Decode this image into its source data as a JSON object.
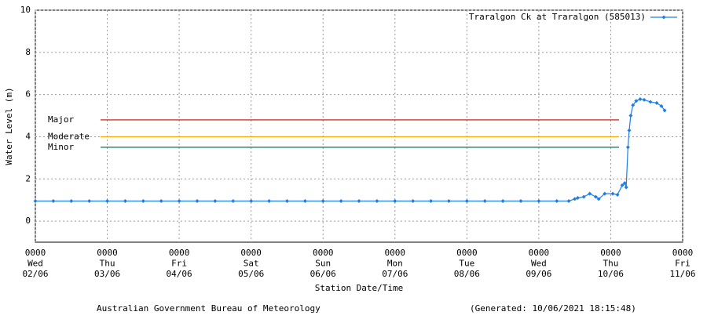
{
  "chart_data": {
    "type": "line",
    "y_label": "Water Level (m)",
    "x_label": "Station Date/Time",
    "footer_left": "Australian Government Bureau of Meteorology",
    "footer_right": "(Generated: 10/06/2021 18:15:48)",
    "ylim": [
      -1,
      10
    ],
    "yticks": [
      0,
      2,
      4,
      6,
      8,
      10
    ],
    "grid": true,
    "xlim": [
      "02/06 00:00",
      "11/06 00:00"
    ],
    "xticks": [
      {
        "value": "02/06 00:00",
        "label": [
          "0000",
          "Wed",
          "02/06"
        ]
      },
      {
        "value": "03/06 00:00",
        "label": [
          "0000",
          "Thu",
          "03/06"
        ]
      },
      {
        "value": "04/06 00:00",
        "label": [
          "0000",
          "Fri",
          "04/06"
        ]
      },
      {
        "value": "05/06 00:00",
        "label": [
          "0000",
          "Sat",
          "05/06"
        ]
      },
      {
        "value": "06/06 00:00",
        "label": [
          "0000",
          "Sun",
          "06/06"
        ]
      },
      {
        "value": "07/06 00:00",
        "label": [
          "0000",
          "Mon",
          "07/06"
        ]
      },
      {
        "value": "08/06 00:00",
        "label": [
          "0000",
          "Tue",
          "08/06"
        ]
      },
      {
        "value": "09/06 00:00",
        "label": [
          "0000",
          "Wed",
          "09/06"
        ]
      },
      {
        "value": "10/06 00:00",
        "label": [
          "0000",
          "Thu",
          "10/06"
        ]
      },
      {
        "value": "11/06 00:00",
        "label": [
          "0000",
          "Fri",
          "11/06"
        ]
      }
    ],
    "thresholds": [
      {
        "name": "Major",
        "value": 4.8,
        "color": "#cc0000"
      },
      {
        "name": "Moderate",
        "value": 4.0,
        "color": "#ffa500"
      },
      {
        "name": "Minor",
        "value": 3.5,
        "color": "#007755"
      }
    ],
    "legend": "top-right",
    "series": [
      {
        "name": "Traralgon Ck at Traralgon (585013)",
        "color": "#1e7ee6",
        "x": [
          "02/06 00:00",
          "02/06 06:00",
          "02/06 12:00",
          "02/06 18:00",
          "03/06 00:00",
          "03/06 06:00",
          "03/06 12:00",
          "03/06 18:00",
          "04/06 00:00",
          "04/06 06:00",
          "04/06 12:00",
          "04/06 18:00",
          "05/06 00:00",
          "05/06 06:00",
          "05/06 12:00",
          "05/06 18:00",
          "06/06 00:00",
          "06/06 06:00",
          "06/06 12:00",
          "06/06 18:00",
          "07/06 00:00",
          "07/06 06:00",
          "07/06 12:00",
          "07/06 18:00",
          "08/06 00:00",
          "08/06 06:00",
          "08/06 12:00",
          "08/06 18:00",
          "09/06 00:00",
          "09/06 06:00",
          "09/06 10:00",
          "09/06 12:00",
          "09/06 13:00",
          "09/06 15:00",
          "09/06 17:00",
          "09/06 19:00",
          "09/06 20:00",
          "09/06 22:00",
          "10/06 00:40",
          "10/06 02:15",
          "10/06 03:50",
          "10/06 04:40",
          "10/06 05:10",
          "10/06 05:45",
          "10/06 06:10",
          "10/06 06:40",
          "10/06 07:25",
          "10/06 08:30",
          "10/06 09:50",
          "10/06 11:10",
          "10/06 13:15",
          "10/06 15:20",
          "10/06 16:55",
          "10/06 18:00"
        ],
        "values": [
          0.95,
          0.95,
          0.95,
          0.95,
          0.95,
          0.95,
          0.95,
          0.95,
          0.95,
          0.95,
          0.95,
          0.95,
          0.95,
          0.95,
          0.95,
          0.95,
          0.95,
          0.95,
          0.95,
          0.95,
          0.95,
          0.95,
          0.95,
          0.95,
          0.95,
          0.95,
          0.95,
          0.95,
          0.95,
          0.95,
          0.95,
          1.05,
          1.1,
          1.15,
          1.3,
          1.15,
          1.05,
          1.3,
          1.3,
          1.25,
          1.7,
          1.8,
          1.6,
          3.5,
          4.3,
          5.0,
          5.5,
          5.7,
          5.78,
          5.75,
          5.65,
          5.6,
          5.45,
          5.25
        ]
      }
    ]
  }
}
